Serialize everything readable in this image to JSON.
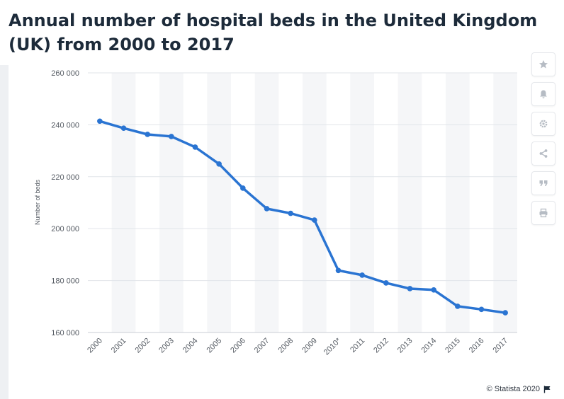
{
  "title": "Annual number of hospital beds in the United Kingdom (UK) from 2000 to 2017",
  "credit": "© Statista 2020",
  "icons": [
    "star-icon",
    "bell-icon",
    "gear-icon",
    "share-icon",
    "quote-icon",
    "print-icon",
    "flag-icon"
  ],
  "colors": {
    "line": "#2a74d2",
    "grid": "#e2e5ea",
    "band": "#f5f6f8",
    "title": "#1d2b3a"
  },
  "chart_data": {
    "type": "line",
    "title": "Annual number of hospital beds in the United Kingdom (UK) from 2000 to 2017",
    "xlabel": "",
    "ylabel": "Number of beds",
    "categories": [
      "2000",
      "2001",
      "2002",
      "2003",
      "2004",
      "2005",
      "2006",
      "2007",
      "2008",
      "2009",
      "2010*",
      "2011",
      "2012",
      "2013",
      "2014",
      "2015",
      "2016",
      "2017"
    ],
    "values": [
      241400,
      238700,
      236300,
      235500,
      231400,
      224900,
      215600,
      207700,
      205900,
      203300,
      183900,
      182100,
      179100,
      176900,
      176400,
      170100,
      168900,
      167600
    ],
    "ylim": [
      160000,
      260000
    ],
    "yticks": [
      160000,
      180000,
      200000,
      220000,
      240000,
      260000
    ],
    "ytick_labels": [
      "160 000",
      "180 000",
      "200 000",
      "220 000",
      "240 000",
      "260 000"
    ],
    "grid": true
  }
}
